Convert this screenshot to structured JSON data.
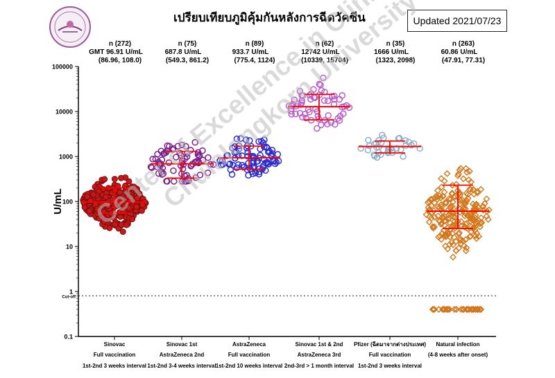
{
  "header": {
    "title": "เปรียบเทียบภูมิคุ้มกันหลังการฉีดวัคซีน",
    "updated": "Updated 2021/07/23"
  },
  "watermark": {
    "line1": "Center of Excellence in Clinical Virology",
    "line2": "Chulalongkorn University"
  },
  "colors": {
    "sinovac": "#b01010",
    "sinovac_az": "#7a1e88",
    "astrazeneca": "#2b2bcc",
    "sinovac_sinovac_az": "#b85cc8",
    "pfizer": "#8ab0c8",
    "natural": "#d2761a",
    "summary": "#ff0000"
  },
  "chart_data": {
    "type": "scatter",
    "title": "เปรียบเทียบภูมิคุ้มกันหลังการฉีดวัคซีน",
    "ylabel": "U/mL",
    "yscale": "log",
    "ylim": [
      0.1,
      100000
    ],
    "yticks": [
      "0.1",
      "1",
      "10",
      "100",
      "1000",
      "10000",
      "100000"
    ],
    "cutoff": {
      "value": 0.8,
      "label": "Cut-off"
    },
    "groups": [
      {
        "n": "n (272)",
        "gmt": "GMT 96.91 U/mL",
        "ci": "(86.96, 108.0)",
        "label1": "Sinovac",
        "label2": "Full vaccination",
        "label3": "1st-2nd 3 weeks interval",
        "gm": 96.91,
        "q1": 55,
        "q3": 200,
        "marker": "circle-filled",
        "count": 272,
        "range": [
          10,
          900
        ]
      },
      {
        "n": "n (75)",
        "gmt": "687.8 U/mL",
        "ci": "(549.3, 861.2)",
        "label1": "Sinovac 1st",
        "label2": "AstraZeneca 2nd",
        "label3": "1st-2nd 3-4 weeks interval",
        "gm": 687.8,
        "q1": 330,
        "q3": 1300,
        "marker": "circle",
        "count": 75,
        "range": [
          280,
          8500
        ]
      },
      {
        "n": "n (89)",
        "gmt": "933.7 U/mL",
        "ci": "(775.4, 1124)",
        "label1": "AstraZeneca",
        "label2": "Full vaccination",
        "label3": "1st-2nd 10 weeks interval",
        "gm": 933.7,
        "q1": 520,
        "q3": 1700,
        "marker": "circle",
        "count": 89,
        "range": [
          45,
          6500
        ]
      },
      {
        "n": "n (62)",
        "gmt": "12742 U/mL",
        "ci": "(10339, 15704)",
        "label1": "Sinovac 1st & 2nd",
        "label2": "AstraZeneca 3rd",
        "label3": "2nd-3rd > 1 month interval",
        "gm": 12742,
        "q1": 6500,
        "q3": 24000,
        "marker": "circle",
        "count": 62,
        "range": [
          2200,
          100000
        ]
      },
      {
        "n": "n (35)",
        "gmt": "1666 U/mL",
        "ci": "(1323, 2098)",
        "label1": "Pfizer (ฉีดมาจากต่างประเทศ)",
        "label2": "Full vaccination",
        "label3": "1st-2nd 3 weeks interval",
        "gm": 1666,
        "q1": 1200,
        "q3": 2200,
        "marker": "circle",
        "count": 35,
        "range": [
          480,
          7000
        ]
      },
      {
        "n": "n (263)",
        "gmt": "60.86 U/mL",
        "ci": "(47.91, 77.31)",
        "label1": "Natural infection",
        "label2": "(4-8 weeks after onset)",
        "label3": "",
        "gm": 60.86,
        "q1": 25,
        "q3": 230,
        "marker": "diamond",
        "count": 263,
        "range": [
          0.4,
          1600
        ]
      }
    ],
    "grid": false,
    "legend": "none"
  }
}
